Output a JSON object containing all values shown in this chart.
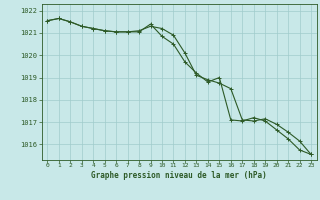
{
  "title": "Graphe pression niveau de la mer (hPa)",
  "bg_color": "#c8e8e8",
  "grid_color": "#a0cccc",
  "line_color": "#2d5a27",
  "marker_color": "#2d5a27",
  "xlim": [
    -0.5,
    23.5
  ],
  "ylim": [
    1015.3,
    1022.3
  ],
  "yticks": [
    1016,
    1017,
    1018,
    1019,
    1020,
    1021,
    1022
  ],
  "xticks": [
    0,
    1,
    2,
    3,
    4,
    5,
    6,
    7,
    8,
    9,
    10,
    11,
    12,
    13,
    14,
    15,
    16,
    17,
    18,
    19,
    20,
    21,
    22,
    23
  ],
  "line1": [
    1021.55,
    1021.65,
    1021.5,
    1021.3,
    1021.2,
    1021.1,
    1021.05,
    1021.05,
    1021.05,
    1021.4,
    1020.85,
    1020.5,
    1019.7,
    1019.2,
    1018.8,
    1019.0,
    1017.1,
    1017.05,
    1017.2,
    1017.05,
    1016.65,
    1016.25,
    1015.75,
    1015.55
  ],
  "line2": [
    1021.55,
    1021.65,
    1021.5,
    1021.3,
    1021.2,
    1021.1,
    1021.05,
    1021.05,
    1021.1,
    1021.3,
    1021.2,
    1020.9,
    1020.1,
    1019.1,
    1018.9,
    1018.75,
    1018.5,
    1017.1,
    1017.05,
    1017.15,
    1016.9,
    1016.55,
    1016.15,
    1015.55
  ]
}
